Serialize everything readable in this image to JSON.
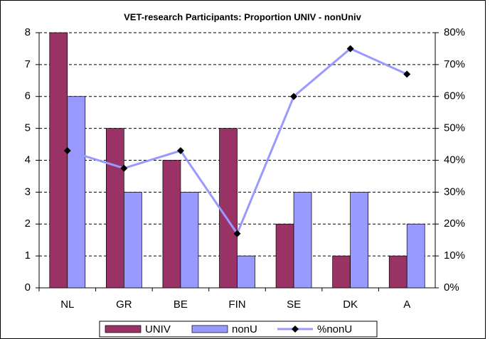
{
  "chart_data": {
    "type": "bar-line",
    "title": "VET-research Participants: Proportion UNIV - nonUniv",
    "categories": [
      "NL",
      "GR",
      "BE",
      "FIN",
      "SE",
      "DK",
      "A"
    ],
    "series": [
      {
        "name": "UNIV",
        "color": "#993366",
        "type": "bar",
        "values": [
          8,
          5,
          4,
          5,
          2,
          1,
          1
        ]
      },
      {
        "name": "nonU",
        "color": "#9999ff",
        "type": "bar",
        "values": [
          6,
          3,
          3,
          1,
          3,
          3,
          2
        ]
      },
      {
        "name": "%nonU",
        "color": "#9999ff",
        "type": "line",
        "axis": "y2",
        "values": [
          43,
          37.5,
          43,
          17,
          60,
          75,
          67
        ]
      }
    ],
    "ylim": [
      0,
      8
    ],
    "yticks": [
      0,
      1,
      2,
      3,
      4,
      5,
      6,
      7,
      8
    ],
    "y2lim": [
      0,
      80
    ],
    "y2ticks": [
      {
        "value": 0,
        "label": "0%"
      },
      {
        "value": 10,
        "label": "10%"
      },
      {
        "value": 20,
        "label": "20%"
      },
      {
        "value": 30,
        "label": "30%"
      },
      {
        "value": 40,
        "label": "40%"
      },
      {
        "value": 50,
        "label": "50%"
      },
      {
        "value": 60,
        "label": "60%"
      },
      {
        "value": 70,
        "label": "70%"
      },
      {
        "value": 80,
        "label": "80%"
      }
    ],
    "grid": true,
    "legend": "bottom"
  }
}
